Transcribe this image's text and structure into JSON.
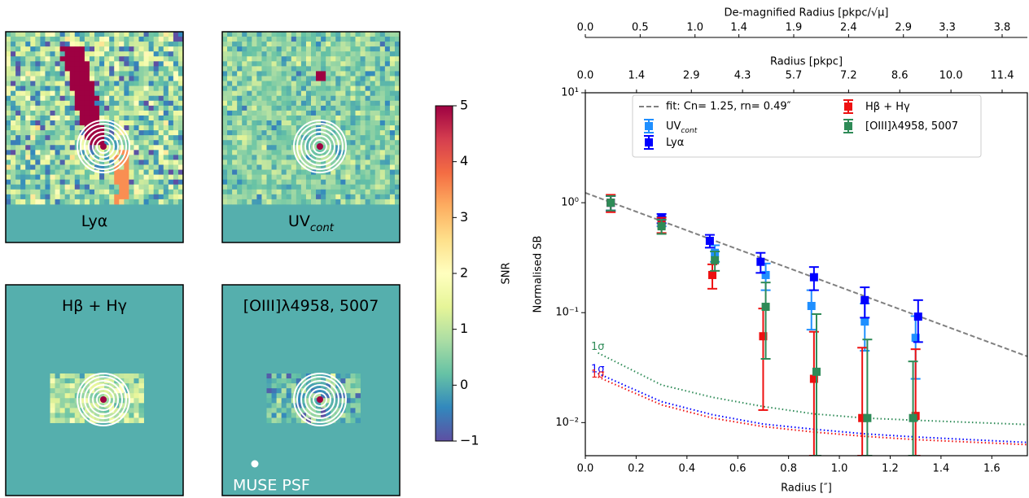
{
  "chart_data": [
    {
      "type": "image-grid",
      "panels": [
        {
          "label": "Lyα"
        },
        {
          "label": "UV",
          "label_sub": "cont"
        },
        {
          "label": "Hβ + Hγ"
        },
        {
          "label": "[OIII]λ4958, 5007"
        }
      ],
      "annotation": "MUSE PSF",
      "colorbar_label": "SNR",
      "clim": [
        -1,
        5
      ],
      "cticks": [
        {
          "value": -1,
          "label": "−1"
        },
        0,
        1,
        2,
        3,
        4,
        5
      ]
    },
    {
      "type": "errorbar",
      "xlabel": "Radius [″]",
      "ylabel": "Normalised SB",
      "x2label": "Radius [pkpc]",
      "x3label": "De-magnified Radius [pkpc/√μ]",
      "xlim": [
        0,
        1.74
      ],
      "xticks": [
        {
          "value": 0,
          "label": "0.0"
        },
        0.2,
        0.4,
        0.6,
        0.8,
        {
          "value": 1,
          "label": "1.0"
        },
        1.2,
        1.4,
        1.6
      ],
      "x2lim": [
        0,
        12.09
      ],
      "x2ticks": [
        {
          "value": 0,
          "label": "0.0"
        },
        1.4,
        2.9,
        4.3,
        5.7,
        7.2,
        8.6,
        {
          "value": 10,
          "label": "10.0"
        },
        11.4
      ],
      "x3lim": [
        0,
        4.03
      ],
      "x3ticks": [
        {
          "value": 0,
          "label": "0.0"
        },
        0.5,
        {
          "value": 1,
          "label": "1.0"
        },
        1.4,
        1.9,
        2.4,
        2.9,
        3.3,
        3.8
      ],
      "ylim": [
        0.005,
        10
      ],
      "log_y": true,
      "yticks": [
        {
          "value": 0.01,
          "label": "10⁻²"
        },
        {
          "value": 0.1,
          "label": "10⁻¹"
        },
        {
          "value": 1,
          "label": "10⁰"
        },
        {
          "value": 10,
          "label": "10¹"
        }
      ],
      "fit": {
        "name": "fit: Cn= 1.25, rn= 0.49″",
        "color": "#808080",
        "x": [
          0,
          1.74
        ],
        "values": [
          1.23,
          0.04
        ]
      },
      "series": [
        {
          "name": "UV",
          "name_sub": "cont",
          "color": "#1f8fff",
          "x": [
            0.1,
            0.3,
            0.51,
            0.71,
            0.89,
            1.1,
            1.3
          ],
          "values": [
            1.0,
            0.68,
            0.35,
            0.22,
            0.115,
            0.083,
            0.059
          ],
          "err": [
            0.17,
            0.07,
            0.06,
            0.06,
            0.045,
            0.038,
            0.034
          ]
        },
        {
          "name": "Lyα",
          "color": "#0000ff",
          "x": [
            0.1,
            0.3,
            0.49,
            0.69,
            0.9,
            1.1,
            1.31
          ],
          "values": [
            1.0,
            0.72,
            0.45,
            0.29,
            0.21,
            0.13,
            0.092
          ],
          "err": [
            0.15,
            0.07,
            0.06,
            0.06,
            0.05,
            0.04,
            0.038
          ]
        },
        {
          "name": "Hβ + Hγ",
          "color": "#ee1111",
          "x": [
            0.1,
            0.3,
            0.5,
            0.7,
            0.9,
            1.09,
            1.3
          ],
          "values": [
            1.0,
            0.63,
            0.22,
            0.061,
            0.025,
            0.011,
            0.0115
          ],
          "err": [
            0.18,
            0.1,
            0.055,
            0.048,
            0.042,
            0.037,
            0.035
          ]
        },
        {
          "name": "[OIII]λ4958, 5007",
          "color": "#2e8b57",
          "x": [
            0.1,
            0.3,
            0.51,
            0.71,
            0.91,
            1.11,
            1.29
          ],
          "values": [
            1.0,
            0.61,
            0.3,
            0.113,
            0.029,
            0.011,
            0.011
          ],
          "err": [
            0.15,
            0.09,
            0.06,
            0.075,
            0.068,
            0.046,
            0.025
          ]
        }
      ],
      "noise": [
        {
          "name": "1σ",
          "color": "#2e8b57",
          "x": [
            0.05,
            0.3,
            0.5,
            0.7,
            0.9,
            1.1,
            1.3,
            1.74
          ],
          "values": [
            0.043,
            0.022,
            0.017,
            0.014,
            0.012,
            0.011,
            0.0105,
            0.0096
          ]
        },
        {
          "name": "1σ",
          "color": "#0000ff",
          "x": [
            0.05,
            0.3,
            0.5,
            0.7,
            0.9,
            1.1,
            1.3,
            1.74
          ],
          "values": [
            0.028,
            0.0155,
            0.0118,
            0.0097,
            0.0087,
            0.0079,
            0.0074,
            0.0066
          ]
        },
        {
          "name": "1σ",
          "color": "#ee1111",
          "x": [
            0.05,
            0.3,
            0.5,
            0.7,
            0.9,
            1.1,
            1.3,
            1.74
          ],
          "values": [
            0.026,
            0.0145,
            0.011,
            0.0092,
            0.0082,
            0.0075,
            0.007,
            0.0063
          ]
        }
      ]
    }
  ]
}
